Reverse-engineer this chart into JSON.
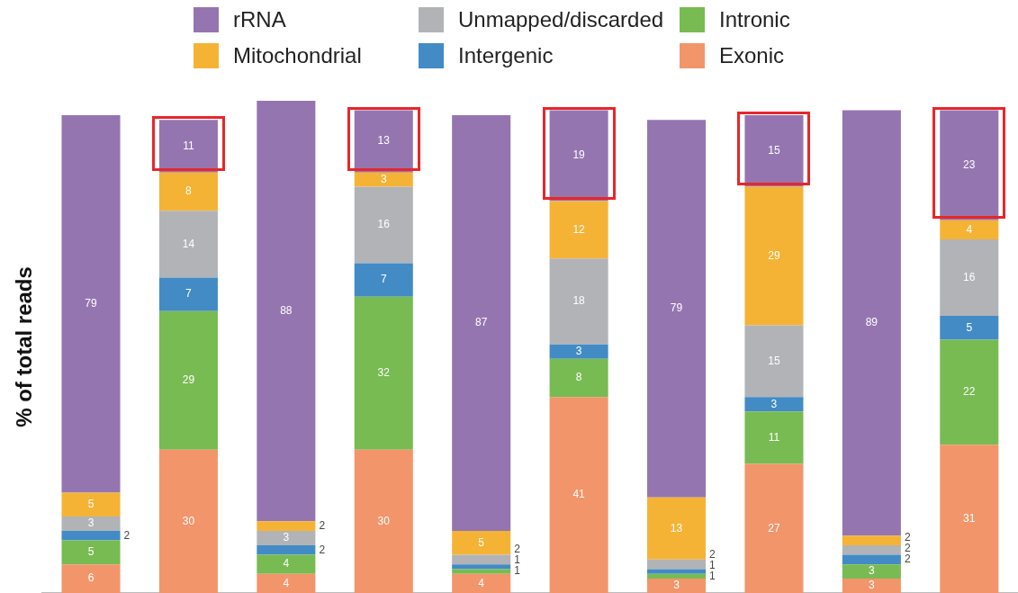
{
  "chart_data": {
    "type": "bar",
    "stacked": true,
    "ylabel": "% of total reads",
    "categories": [
      null,
      null,
      null,
      null,
      null,
      null,
      null,
      null,
      null,
      null
    ],
    "legend": "top",
    "tick_labels": false,
    "data_labels": true,
    "grid": false,
    "series": [
      {
        "name": "Exonic",
        "color": "#f2956b",
        "values": [
          6,
          30,
          4,
          30,
          4,
          41,
          3,
          27,
          3,
          31
        ]
      },
      {
        "name": "Intronic",
        "color": "#77bb52",
        "values": [
          5,
          29,
          4,
          32,
          1,
          8,
          1,
          11,
          3,
          22
        ]
      },
      {
        "name": "Intergenic",
        "color": "#428bc5",
        "values": [
          2,
          7,
          2,
          7,
          1,
          3,
          1,
          3,
          2,
          5
        ]
      },
      {
        "name": "Unmapped/discarded",
        "color": "#b1b3b6",
        "values": [
          3,
          14,
          3,
          16,
          2,
          18,
          2,
          15,
          2,
          16
        ]
      },
      {
        "name": "Mitochondrial",
        "color": "#f5b335",
        "values": [
          5,
          8,
          2,
          3,
          5,
          12,
          13,
          29,
          2,
          4
        ]
      },
      {
        "name": "rRNA",
        "color": "#9575b0",
        "values": [
          79,
          11,
          88,
          13,
          87,
          19,
          79,
          15,
          89,
          23
        ]
      }
    ]
  }
}
